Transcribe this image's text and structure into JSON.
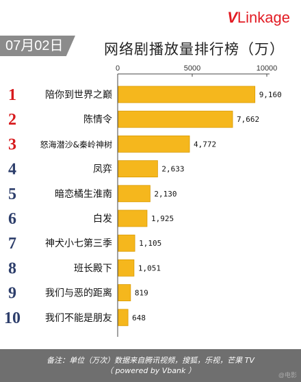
{
  "brand": {
    "logo_v": "V",
    "logo_rest": "Linkage"
  },
  "date_badge": "07月02日",
  "title": "网络剧播放量排行榜（万）",
  "footer": {
    "line1": "备注：单位（万次）数据来自腾讯视频，搜狐，乐视，芒果 TV",
    "line2": "（ powered by Vbank ）"
  },
  "watermark": "@电影",
  "colors": {
    "bar": "#f5b71d",
    "bar_stroke": "#d99a00",
    "rank_red": "#d7191c",
    "rank_navy": "#2d3e6b"
  },
  "chart_data": {
    "type": "bar",
    "orientation": "horizontal",
    "title": "网络剧播放量排行榜（万）",
    "xlim": [
      0,
      10000
    ],
    "ticks": [
      "0",
      "5000",
      "10000"
    ],
    "tick_values": [
      0,
      5000,
      10000
    ],
    "ranks": [
      "1",
      "2",
      "3",
      "4",
      "5",
      "6",
      "7",
      "8",
      "9",
      "10"
    ],
    "categories": [
      "陪你到世界之巅",
      "陈情令",
      "怒海潜沙&秦岭神树",
      "凤弈",
      "暗恋橘生淮南",
      "白发",
      "神犬小七第三季",
      "班长殿下",
      "我们与恶的距离",
      "我们不能是朋友"
    ],
    "values": [
      9160,
      7662,
      4772,
      2633,
      2130,
      1925,
      1105,
      1051,
      819,
      648
    ],
    "value_labels": [
      "9,160",
      "7,662",
      "4,772",
      "2,633",
      "2,130",
      "1,925",
      "1,105",
      "1,051",
      "819",
      "648"
    ]
  }
}
